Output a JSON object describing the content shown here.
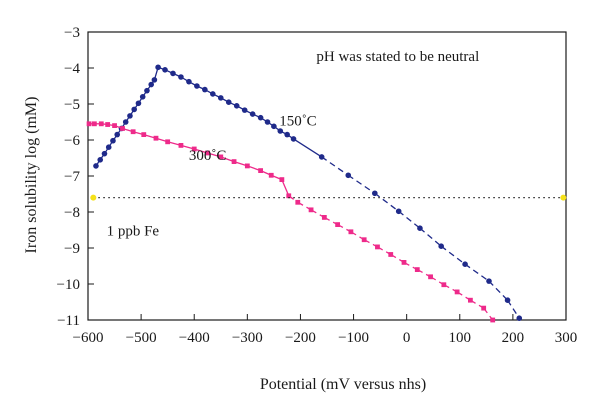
{
  "chart_data": {
    "type": "line",
    "xlabel": "Potential (mV versus nhs)",
    "ylabel": "Iron solubility log (mM)",
    "xlim": [
      -600,
      300
    ],
    "ylim": [
      -11,
      -3
    ],
    "xticks": [
      -600,
      -500,
      -400,
      -300,
      -200,
      -100,
      0,
      100,
      200,
      300
    ],
    "yticks": [
      -3,
      -4,
      -5,
      -6,
      -7,
      -8,
      -9,
      -10,
      -11
    ],
    "xtick_labels": [
      "−600",
      "−500",
      "−400",
      "−300",
      "−200",
      "−100",
      "0",
      "100",
      "200",
      "300"
    ],
    "ytick_labels": [
      "−3",
      "−4",
      "−5",
      "−6",
      "−7",
      "−8",
      "−9",
      "−10",
      "−11"
    ],
    "grid": false,
    "series": [
      {
        "name": "150°C",
        "color": "#1f2a8a",
        "marker": "circle",
        "dashed_from_x": -210,
        "points": [
          [
            -585,
            -6.72
          ],
          [
            -577,
            -6.55
          ],
          [
            -569,
            -6.38
          ],
          [
            -561,
            -6.2
          ],
          [
            -553,
            -6.02
          ],
          [
            -545,
            -5.85
          ],
          [
            -537,
            -5.68
          ],
          [
            -529,
            -5.5
          ],
          [
            -521,
            -5.33
          ],
          [
            -513,
            -5.15
          ],
          [
            -505,
            -4.98
          ],
          [
            -497,
            -4.8
          ],
          [
            -489,
            -4.63
          ],
          [
            -481,
            -4.46
          ],
          [
            -475,
            -4.33
          ],
          [
            -468,
            -3.98
          ],
          [
            -455,
            -4.05
          ],
          [
            -440,
            -4.15
          ],
          [
            -425,
            -4.25
          ],
          [
            -410,
            -4.38
          ],
          [
            -395,
            -4.5
          ],
          [
            -380,
            -4.6
          ],
          [
            -365,
            -4.72
          ],
          [
            -350,
            -4.83
          ],
          [
            -335,
            -4.95
          ],
          [
            -320,
            -5.05
          ],
          [
            -305,
            -5.17
          ],
          [
            -290,
            -5.28
          ],
          [
            -275,
            -5.38
          ],
          [
            -262,
            -5.5
          ],
          [
            -250,
            -5.62
          ],
          [
            -238,
            -5.75
          ],
          [
            -225,
            -5.85
          ],
          [
            -213,
            -5.97
          ],
          [
            -160,
            -6.47
          ],
          [
            -110,
            -6.98
          ],
          [
            -60,
            -7.48
          ],
          [
            -15,
            -7.98
          ],
          [
            25,
            -8.45
          ],
          [
            65,
            -8.95
          ],
          [
            110,
            -9.45
          ],
          [
            155,
            -9.92
          ],
          [
            190,
            -10.45
          ],
          [
            212,
            -10.95
          ]
        ]
      },
      {
        "name": "300°C",
        "color": "#ee2a8a",
        "marker": "square",
        "dashed_from_x": -230,
        "points": [
          [
            -598,
            -5.55
          ],
          [
            -588,
            -5.55
          ],
          [
            -575,
            -5.55
          ],
          [
            -563,
            -5.57
          ],
          [
            -550,
            -5.6
          ],
          [
            -535,
            -5.68
          ],
          [
            -515,
            -5.77
          ],
          [
            -495,
            -5.85
          ],
          [
            -472,
            -5.95
          ],
          [
            -450,
            -6.05
          ],
          [
            -425,
            -6.15
          ],
          [
            -400,
            -6.25
          ],
          [
            -375,
            -6.36
          ],
          [
            -350,
            -6.47
          ],
          [
            -325,
            -6.6
          ],
          [
            -300,
            -6.72
          ],
          [
            -275,
            -6.85
          ],
          [
            -255,
            -6.98
          ],
          [
            -235,
            -7.1
          ],
          [
            -222,
            -7.55
          ],
          [
            -205,
            -7.73
          ],
          [
            -180,
            -7.94
          ],
          [
            -155,
            -8.15
          ],
          [
            -130,
            -8.35
          ],
          [
            -105,
            -8.55
          ],
          [
            -80,
            -8.77
          ],
          [
            -55,
            -8.97
          ],
          [
            -30,
            -9.18
          ],
          [
            -5,
            -9.4
          ],
          [
            20,
            -9.6
          ],
          [
            45,
            -9.8
          ],
          [
            70,
            -10.02
          ],
          [
            95,
            -10.22
          ],
          [
            120,
            -10.45
          ],
          [
            145,
            -10.67
          ],
          [
            162,
            -11.0
          ]
        ]
      },
      {
        "name": "1 ppb Fe",
        "color": "#222222",
        "style": "dotted",
        "marker_color": "#f5e11a",
        "points": [
          [
            -590,
            -7.6
          ],
          [
            295,
            -7.6
          ]
        ]
      }
    ],
    "annotations": [
      {
        "text": "pH was stated to be neutral",
        "x": -170,
        "y": -3.8
      },
      {
        "text": "150˚C",
        "x": -240,
        "y": -5.6
      },
      {
        "text": "300˚C",
        "x": -410,
        "y": -6.55
      },
      {
        "text": "1 ppb Fe",
        "x": -565,
        "y": -8.65
      }
    ]
  }
}
